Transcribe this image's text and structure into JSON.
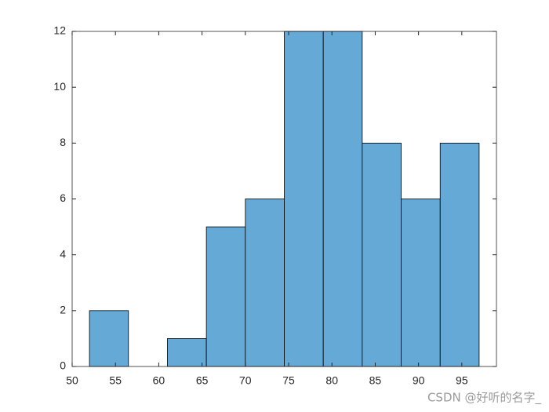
{
  "chart_data": {
    "type": "histogram",
    "bins": [
      52,
      56.5,
      61,
      65.5,
      70,
      74.5,
      79,
      83.5,
      88,
      92.5,
      97
    ],
    "values": [
      2,
      0,
      1,
      5,
      6,
      12,
      12,
      8,
      6,
      8
    ],
    "color": "#65a9d7",
    "xlim": [
      50,
      99
    ],
    "xticks": [
      50,
      55,
      60,
      65,
      70,
      75,
      80,
      85,
      90,
      95
    ],
    "ylim": [
      0,
      12
    ],
    "yticks": [
      0,
      2,
      4,
      6,
      8,
      10,
      12
    ],
    "grid": false
  },
  "watermark": "CSDN @好听的名字_"
}
